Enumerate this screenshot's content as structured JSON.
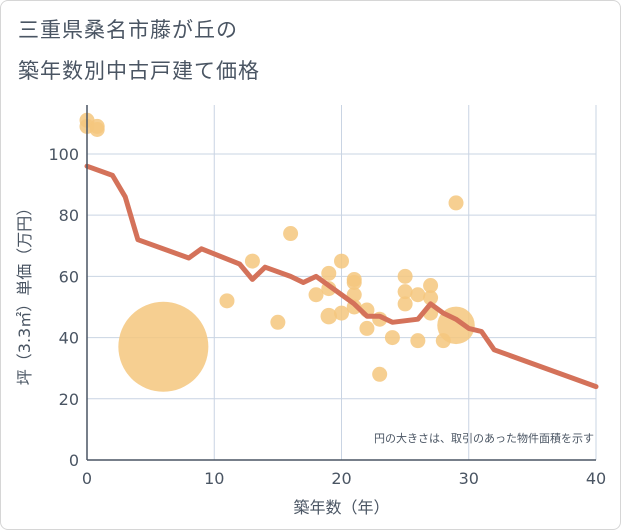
{
  "title_line1": "三重県桑名市藤が丘の",
  "title_line2": "築年数別中古戸建て価格",
  "chart_data": {
    "type": "scatter",
    "xlabel": "築年数（年）",
    "ylabel": "坪（3.3㎡）単価（万円）",
    "xlim": [
      0,
      40
    ],
    "ylim": [
      0,
      116
    ],
    "xticks": [
      "0",
      "10",
      "20",
      "30",
      "40"
    ],
    "xtick_values": [
      0,
      10,
      20,
      30,
      40
    ],
    "yticks": [
      "0",
      "20",
      "40",
      "60",
      "80",
      "100"
    ],
    "ytick_values": [
      0,
      20,
      40,
      60,
      80,
      100
    ],
    "grid": true,
    "note": "円の大きさは、取引のあった物件面積を示す",
    "colors": {
      "bubble": "#f5c77e",
      "line": "#d4725a",
      "grid": "#c9d4e3",
      "axis": "#4a5563"
    },
    "points": [
      {
        "x": 0,
        "y": 111,
        "size": 1
      },
      {
        "x": 0,
        "y": 109,
        "size": 1
      },
      {
        "x": 0.8,
        "y": 109,
        "size": 1
      },
      {
        "x": 0.8,
        "y": 108,
        "size": 1
      },
      {
        "x": 6,
        "y": 37,
        "size": 6
      },
      {
        "x": 11,
        "y": 52,
        "size": 1
      },
      {
        "x": 13,
        "y": 65,
        "size": 1
      },
      {
        "x": 15,
        "y": 45,
        "size": 1
      },
      {
        "x": 16,
        "y": 74,
        "size": 1
      },
      {
        "x": 18,
        "y": 54,
        "size": 1
      },
      {
        "x": 19,
        "y": 61,
        "size": 1
      },
      {
        "x": 19,
        "y": 56,
        "size": 1
      },
      {
        "x": 19,
        "y": 47,
        "size": 1.1
      },
      {
        "x": 20,
        "y": 65,
        "size": 1
      },
      {
        "x": 20,
        "y": 48,
        "size": 1
      },
      {
        "x": 21,
        "y": 59,
        "size": 1
      },
      {
        "x": 21,
        "y": 58,
        "size": 1
      },
      {
        "x": 21,
        "y": 54,
        "size": 1
      },
      {
        "x": 21,
        "y": 50,
        "size": 1
      },
      {
        "x": 22,
        "y": 49,
        "size": 1
      },
      {
        "x": 22,
        "y": 43,
        "size": 1
      },
      {
        "x": 23,
        "y": 46,
        "size": 1
      },
      {
        "x": 23,
        "y": 28,
        "size": 1
      },
      {
        "x": 24,
        "y": 40,
        "size": 1
      },
      {
        "x": 25,
        "y": 60,
        "size": 1
      },
      {
        "x": 25,
        "y": 55,
        "size": 1
      },
      {
        "x": 25,
        "y": 51,
        "size": 1
      },
      {
        "x": 26,
        "y": 54,
        "size": 1
      },
      {
        "x": 26,
        "y": 39,
        "size": 1
      },
      {
        "x": 27,
        "y": 57,
        "size": 1
      },
      {
        "x": 27,
        "y": 53,
        "size": 1
      },
      {
        "x": 27,
        "y": 48,
        "size": 1
      },
      {
        "x": 28,
        "y": 39,
        "size": 1
      },
      {
        "x": 29,
        "y": 84,
        "size": 1
      },
      {
        "x": 29,
        "y": 44,
        "size": 2.5
      }
    ],
    "trend": {
      "x": [
        0,
        2,
        3,
        4,
        8,
        9,
        12,
        13,
        14,
        16,
        17,
        18,
        20,
        21,
        22,
        23,
        24,
        26,
        27,
        28,
        29,
        30,
        31,
        32,
        40
      ],
      "y": [
        96,
        93,
        86,
        72,
        66,
        69,
        64,
        59,
        63,
        60,
        58,
        60,
        54,
        51,
        47,
        47,
        45,
        46,
        51,
        48,
        46,
        43,
        42,
        36,
        24
      ]
    }
  }
}
